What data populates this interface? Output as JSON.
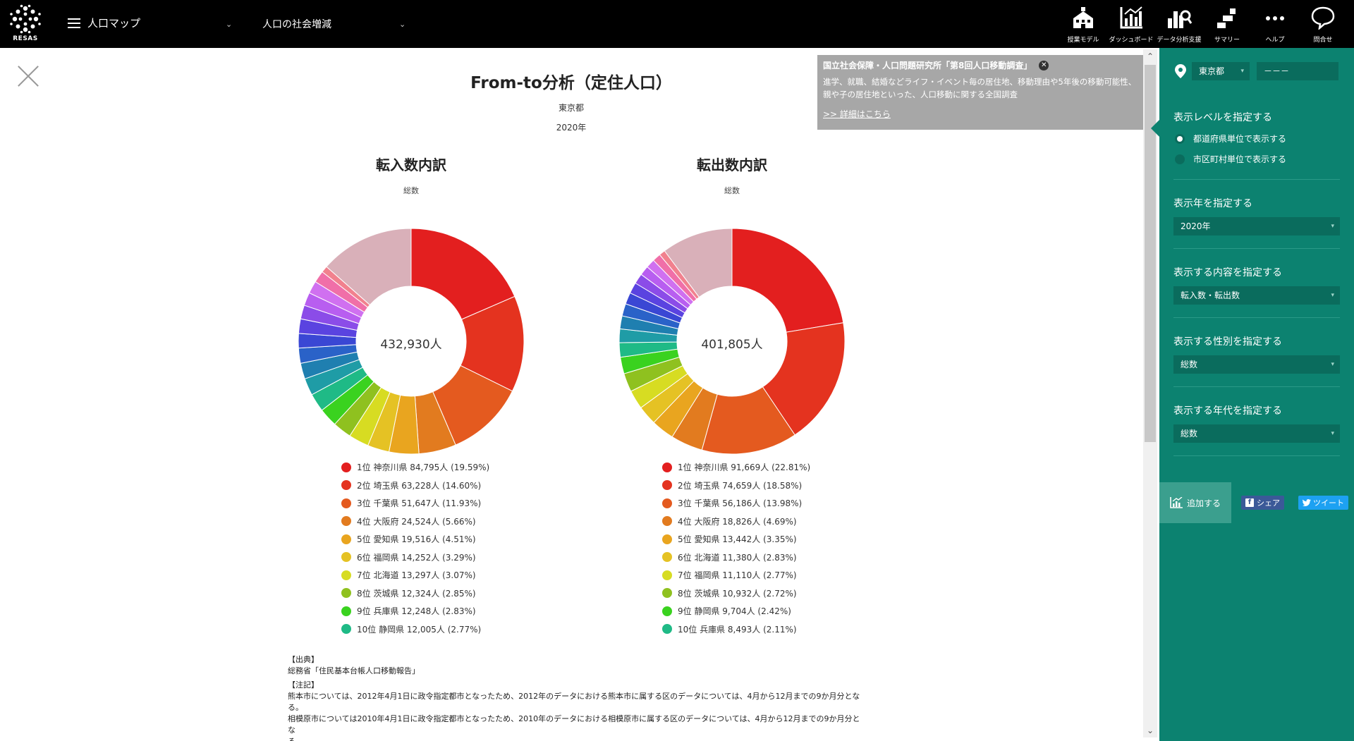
{
  "header": {
    "logo_text": "RESAS",
    "menu_label": "人口マップ",
    "submenu_label": "人口の社会増減",
    "icons": [
      {
        "name": "jugyo-model-icon",
        "label": "授業モデル"
      },
      {
        "name": "dashboard-icon",
        "label": "ダッシュボード"
      },
      {
        "name": "data-analysis-icon",
        "label": "データ分析支援"
      },
      {
        "name": "summary-icon",
        "label": "サマリー"
      },
      {
        "name": "help-icon",
        "label": "ヘルプ"
      },
      {
        "name": "contact-icon",
        "label": "問合せ"
      }
    ]
  },
  "main": {
    "title": "From-to分析（定住人口）",
    "region": "東京都",
    "year": "2020年"
  },
  "info_popup": {
    "title": "国立社会保障・人口問題研究所「第8回人口移動調査」",
    "body_line1": "進学、就職、結婚などライフ・イベント毎の居住地、移動理由や5年後の移動可能性、",
    "body_line2": "親や子の居住地といった、人口移動に関する全国調査",
    "link": ">> 詳細はこちら"
  },
  "chart_data": [
    {
      "type": "pie",
      "title": "転入数内訳",
      "subtitle": "総数",
      "total_label": "432,930人",
      "total": 432930,
      "slices": [
        {
          "rank": "1位",
          "name": "神奈川県",
          "value": 84795,
          "percent": 19.59,
          "color": "#e31f1f",
          "label": "1位 神奈川県 84,795人 (19.59%)"
        },
        {
          "rank": "2位",
          "name": "埼玉県",
          "value": 63228,
          "percent": 14.6,
          "color": "#e4331f",
          "label": "2位 埼玉県 63,228人 (14.60%)"
        },
        {
          "rank": "3位",
          "name": "千葉県",
          "value": 51647,
          "percent": 11.93,
          "color": "#e45a1f",
          "label": "3位 千葉県 51,647人 (11.93%)"
        },
        {
          "rank": "4位",
          "name": "大阪府",
          "value": 24524,
          "percent": 5.66,
          "color": "#e27b1f",
          "label": "4位 大阪府 24,524人 (5.66%)"
        },
        {
          "rank": "5位",
          "name": "愛知県",
          "value": 19516,
          "percent": 4.51,
          "color": "#e9a51f",
          "label": "5位 愛知県 19,516人 (4.51%)"
        },
        {
          "rank": "6位",
          "name": "福岡県",
          "value": 14252,
          "percent": 3.29,
          "color": "#e5c224",
          "label": "6位 福岡県 14,252人 (3.29%)"
        },
        {
          "rank": "7位",
          "name": "北海道",
          "value": 13297,
          "percent": 3.07,
          "color": "#d7dc22",
          "label": "7位 北海道 13,297人 (3.07%)"
        },
        {
          "rank": "8位",
          "name": "茨城県",
          "value": 12324,
          "percent": 2.85,
          "color": "#8fc11f",
          "label": "8位 茨城県 12,324人 (2.85%)"
        },
        {
          "rank": "9位",
          "name": "兵庫県",
          "value": 12248,
          "percent": 2.83,
          "color": "#3ad21f",
          "label": "9位 兵庫県 12,248人 (2.83%)"
        },
        {
          "rank": "10位",
          "name": "静岡県",
          "value": 12005,
          "percent": 2.77,
          "color": "#1fba86",
          "label": "10位 静岡県 12,005人 (2.77%)"
        }
      ],
      "others": [
        {
          "percent": 2.6,
          "color": "#1f9ca6"
        },
        {
          "percent": 2.4,
          "color": "#1f7fb0"
        },
        {
          "percent": 2.3,
          "color": "#2a62c8"
        },
        {
          "percent": 2.2,
          "color": "#3a47d4"
        },
        {
          "percent": 2.2,
          "color": "#5a43e0"
        },
        {
          "percent": 2.1,
          "color": "#8b4ce8"
        },
        {
          "percent": 2.0,
          "color": "#b85ef0"
        },
        {
          "percent": 1.9,
          "color": "#d070f0"
        },
        {
          "percent": 1.8,
          "color": "#f06fa8"
        },
        {
          "percent": 1.0,
          "color": "#f1818e"
        },
        {
          "percent": 14.3,
          "color": "#d9b0b9"
        }
      ]
    },
    {
      "type": "pie",
      "title": "転出数内訳",
      "subtitle": "総数",
      "total_label": "401,805人",
      "total": 401805,
      "slices": [
        {
          "rank": "1位",
          "name": "神奈川県",
          "value": 91669,
          "percent": 22.81,
          "color": "#e31f1f",
          "label": "1位 神奈川県 91,669人 (22.81%)"
        },
        {
          "rank": "2位",
          "name": "埼玉県",
          "value": 74659,
          "percent": 18.58,
          "color": "#e4331f",
          "label": "2位 埼玉県 74,659人 (18.58%)"
        },
        {
          "rank": "3位",
          "name": "千葉県",
          "value": 56186,
          "percent": 13.98,
          "color": "#e45a1f",
          "label": "3位 千葉県 56,186人 (13.98%)"
        },
        {
          "rank": "4位",
          "name": "大阪府",
          "value": 18826,
          "percent": 4.69,
          "color": "#e27b1f",
          "label": "4位 大阪府 18,826人 (4.69%)"
        },
        {
          "rank": "5位",
          "name": "愛知県",
          "value": 13442,
          "percent": 3.35,
          "color": "#e9a51f",
          "label": "5位 愛知県 13,442人 (3.35%)"
        },
        {
          "rank": "6位",
          "name": "北海道",
          "value": 11380,
          "percent": 2.83,
          "color": "#e5c224",
          "label": "6位 北海道 11,380人 (2.83%)"
        },
        {
          "rank": "7位",
          "name": "福岡県",
          "value": 11110,
          "percent": 2.77,
          "color": "#d7dc22",
          "label": "7位 福岡県 11,110人 (2.77%)"
        },
        {
          "rank": "8位",
          "name": "茨城県",
          "value": 10932,
          "percent": 2.72,
          "color": "#8fc11f",
          "label": "8位 茨城県 10,932人 (2.72%)"
        },
        {
          "rank": "9位",
          "name": "静岡県",
          "value": 9704,
          "percent": 2.42,
          "color": "#3ad21f",
          "label": "9位 静岡県 9,704人 (2.42%)"
        },
        {
          "rank": "10位",
          "name": "兵庫県",
          "value": 8493,
          "percent": 2.11,
          "color": "#1fba86",
          "label": "10位 兵庫県 8,493人 (2.11%)"
        }
      ],
      "others": [
        {
          "percent": 2.0,
          "color": "#1f9ca6"
        },
        {
          "percent": 1.9,
          "color": "#1f7fb0"
        },
        {
          "percent": 1.8,
          "color": "#2a62c8"
        },
        {
          "percent": 1.7,
          "color": "#3a47d4"
        },
        {
          "percent": 1.6,
          "color": "#5a43e0"
        },
        {
          "percent": 1.5,
          "color": "#8b4ce8"
        },
        {
          "percent": 1.4,
          "color": "#b85ef0"
        },
        {
          "percent": 1.3,
          "color": "#d070f0"
        },
        {
          "percent": 1.2,
          "color": "#f06fa8"
        },
        {
          "percent": 0.9,
          "color": "#f1818e"
        },
        {
          "percent": 10.4,
          "color": "#d9b0b9"
        }
      ]
    }
  ],
  "notes": {
    "source_heading": "【出典】",
    "source": "総務省「住民基本台帳人口移動報告」",
    "note_heading": "【注記】",
    "note1": "熊本市については、2012年4月1日に政令指定都市となったため、2012年のデータにおける熊本市に属する区のデータについては、4月から12月までの9か月分とな",
    "note1b": "る。",
    "note2": "相模原市については2010年4月1日に政令指定都市となったため、2010年のデータにおける相模原市に属する区のデータについては、4月から12月までの9か月分とな",
    "note2b": "る。"
  },
  "sidebar": {
    "prefecture": "東京都",
    "city": "－－－",
    "level_title": "表示レベルを指定する",
    "level_options": [
      "都道府県単位で表示する",
      "市区町村単位で表示する"
    ],
    "year_title": "表示年を指定する",
    "year_value": "2020年",
    "content_title": "表示する内容を指定する",
    "content_value": "転入数・転出数",
    "gender_title": "表示する性別を指定する",
    "gender_value": "総数",
    "age_title": "表示する年代を指定する",
    "age_value": "総数",
    "add_label": "追加する",
    "share_label": "シェア",
    "tweet_label": "ツイート"
  },
  "colors": {
    "header_bg": "#000000",
    "sidebar_bg": "#0c8270",
    "sidebar_dark": "#0a6c5d"
  }
}
